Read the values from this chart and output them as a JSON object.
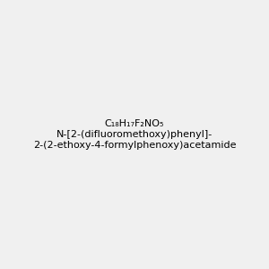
{
  "background_color": "#f0f0f0",
  "bond_color": "#2d6b2d",
  "O_color": "#ff2020",
  "N_color": "#0000ff",
  "F_color": "#ff00ff",
  "H_color": "#808080",
  "title": "N-[2-(difluoromethoxy)phenyl]-2-(2-ethoxy-4-formylphenoxy)acetamide",
  "figsize": [
    3.0,
    3.0
  ],
  "dpi": 100
}
